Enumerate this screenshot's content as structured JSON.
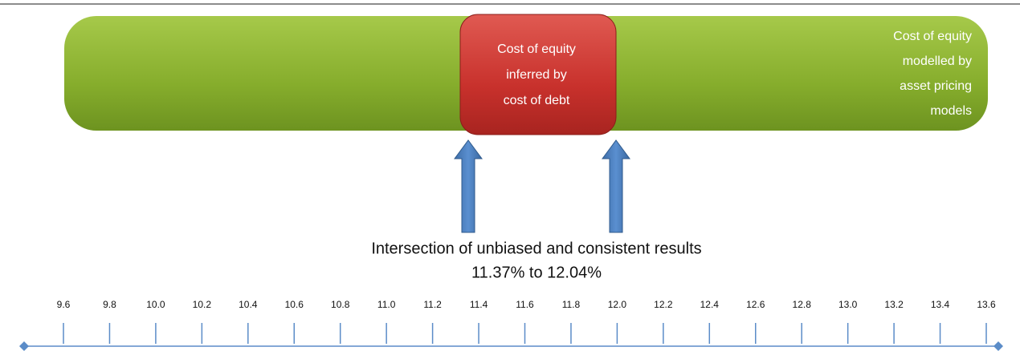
{
  "green_band": {
    "lines": [
      "Cost of equity",
      "modelled  by",
      "asset pricing",
      "models"
    ]
  },
  "red_box": {
    "lines": [
      "Cost of equity",
      "inferred by",
      "cost of debt"
    ]
  },
  "caption": {
    "lines": [
      "Intersection of unbiased and consistent results",
      "11.37% to 12.04%"
    ]
  },
  "number_line": {
    "ticks": [
      "9.6",
      "9.8",
      "10.0",
      "10.2",
      "10.4",
      "10.6",
      "10.8",
      "11.0",
      "11.2",
      "11.4",
      "11.6",
      "11.8",
      "12.0",
      "12.2",
      "12.4",
      "12.6",
      "12.8",
      "13.0",
      "13.2",
      "13.4",
      "13.6"
    ]
  }
}
